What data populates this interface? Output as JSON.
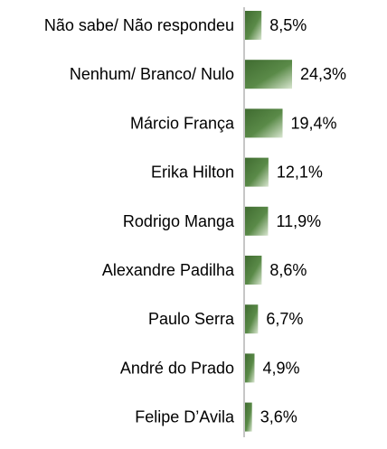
{
  "colors": {
    "bar_dark": "#3f6b30",
    "bar_mid": "#5a8a48",
    "bar_light": "#d9e6d0",
    "axis": "#8c8c8c",
    "text": "#000000"
  },
  "chart_data": {
    "type": "bar",
    "orientation": "horizontal",
    "categories": [
      "Não sabe/ Não respondeu",
      "Nenhum/ Branco/ Nulo",
      "Márcio França",
      "Erika Hilton",
      "Rodrigo Manga",
      "Alexandre Padilha",
      "Paulo Serra",
      "André do Prado",
      "Felipe D’Avila"
    ],
    "values": [
      8.5,
      24.3,
      19.4,
      12.1,
      11.9,
      8.6,
      6.7,
      4.9,
      3.6
    ],
    "data_labels": [
      "8,5%",
      "24,3%",
      "19,4%",
      "12,1%",
      "11,9%",
      "8,6%",
      "6,7%",
      "4,9%",
      "3,6%"
    ],
    "unit": "%",
    "xlim": [
      0,
      30
    ],
    "grid": false,
    "legend": "none"
  }
}
